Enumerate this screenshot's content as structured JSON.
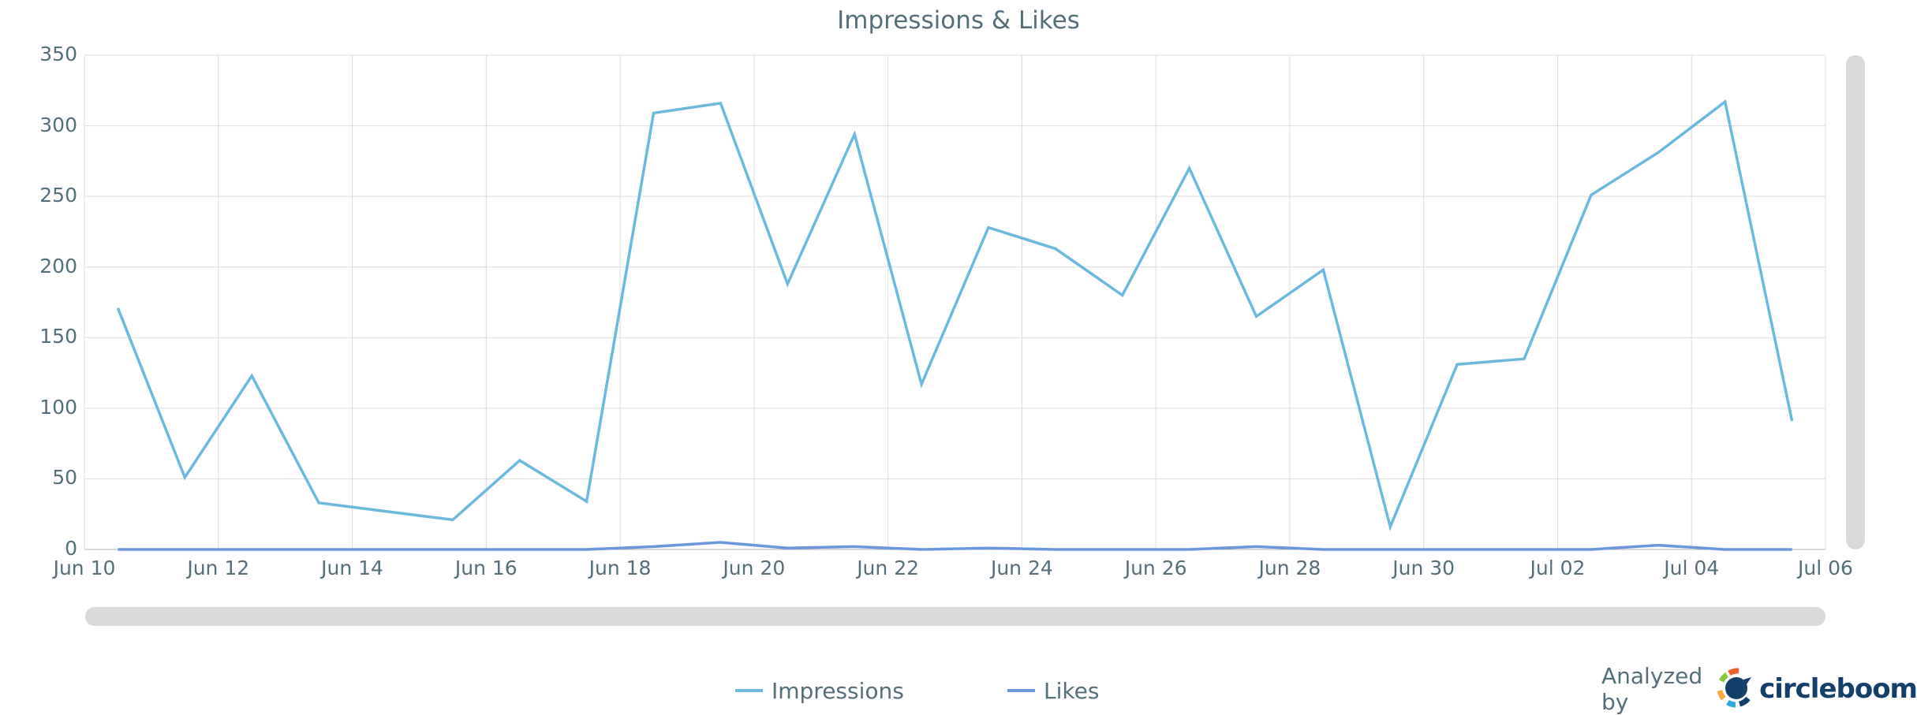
{
  "chart_data": {
    "type": "line",
    "title": "Impressions & Likes",
    "xlabel": "",
    "ylabel": "",
    "ylim": [
      0,
      350
    ],
    "yticks": [
      0,
      50,
      100,
      150,
      200,
      250,
      300,
      350
    ],
    "xticks": [
      "Jun 10",
      "Jun 12",
      "Jun 14",
      "Jun 16",
      "Jun 18",
      "Jun 20",
      "Jun 22",
      "Jun 24",
      "Jun 26",
      "Jun 28",
      "Jun 30",
      "Jul 02",
      "Jul 04",
      "Jul 06"
    ],
    "grid": true,
    "legend_position": "bottom",
    "x": [
      "Jun 10",
      "Jun 11",
      "Jun 12",
      "Jun 13",
      "Jun 15",
      "Jun 16",
      "Jun 17",
      "Jun 18",
      "Jun 19",
      "Jun 20",
      "Jun 21",
      "Jun 22",
      "Jun 23",
      "Jun 24",
      "Jun 25",
      "Jun 26",
      "Jun 27",
      "Jun 28",
      "Jun 29",
      "Jun 30",
      "Jul 01",
      "Jul 02",
      "Jul 03",
      "Jul 04",
      "Jul 05"
    ],
    "x_day_offsets": [
      0.5,
      1.5,
      2.5,
      3.5,
      5.5,
      6.5,
      7.5,
      8.5,
      9.5,
      10.5,
      11.5,
      12.5,
      13.5,
      14.5,
      15.5,
      16.5,
      17.5,
      18.5,
      19.5,
      20.5,
      21.5,
      22.5,
      23.5,
      24.5,
      25.5
    ],
    "series": [
      {
        "name": "Impressions",
        "color": "#6bb9dd",
        "values": [
          171,
          51,
          123,
          33,
          21,
          63,
          34,
          309,
          316,
          188,
          294,
          117,
          228,
          213,
          180,
          270,
          165,
          198,
          16,
          131,
          135,
          251,
          281,
          317,
          91
        ]
      },
      {
        "name": "Likes",
        "color": "#6a97dd",
        "values": [
          0,
          0,
          0,
          0,
          0,
          0,
          0,
          2,
          5,
          1,
          2,
          0,
          1,
          0,
          0,
          0,
          2,
          0,
          0,
          0,
          0,
          0,
          3,
          0,
          0
        ]
      }
    ]
  },
  "legend": {
    "impressions": "Impressions",
    "likes": "Likes"
  },
  "credit": {
    "prefix": "Analyzed by",
    "brand": "circleboom"
  }
}
